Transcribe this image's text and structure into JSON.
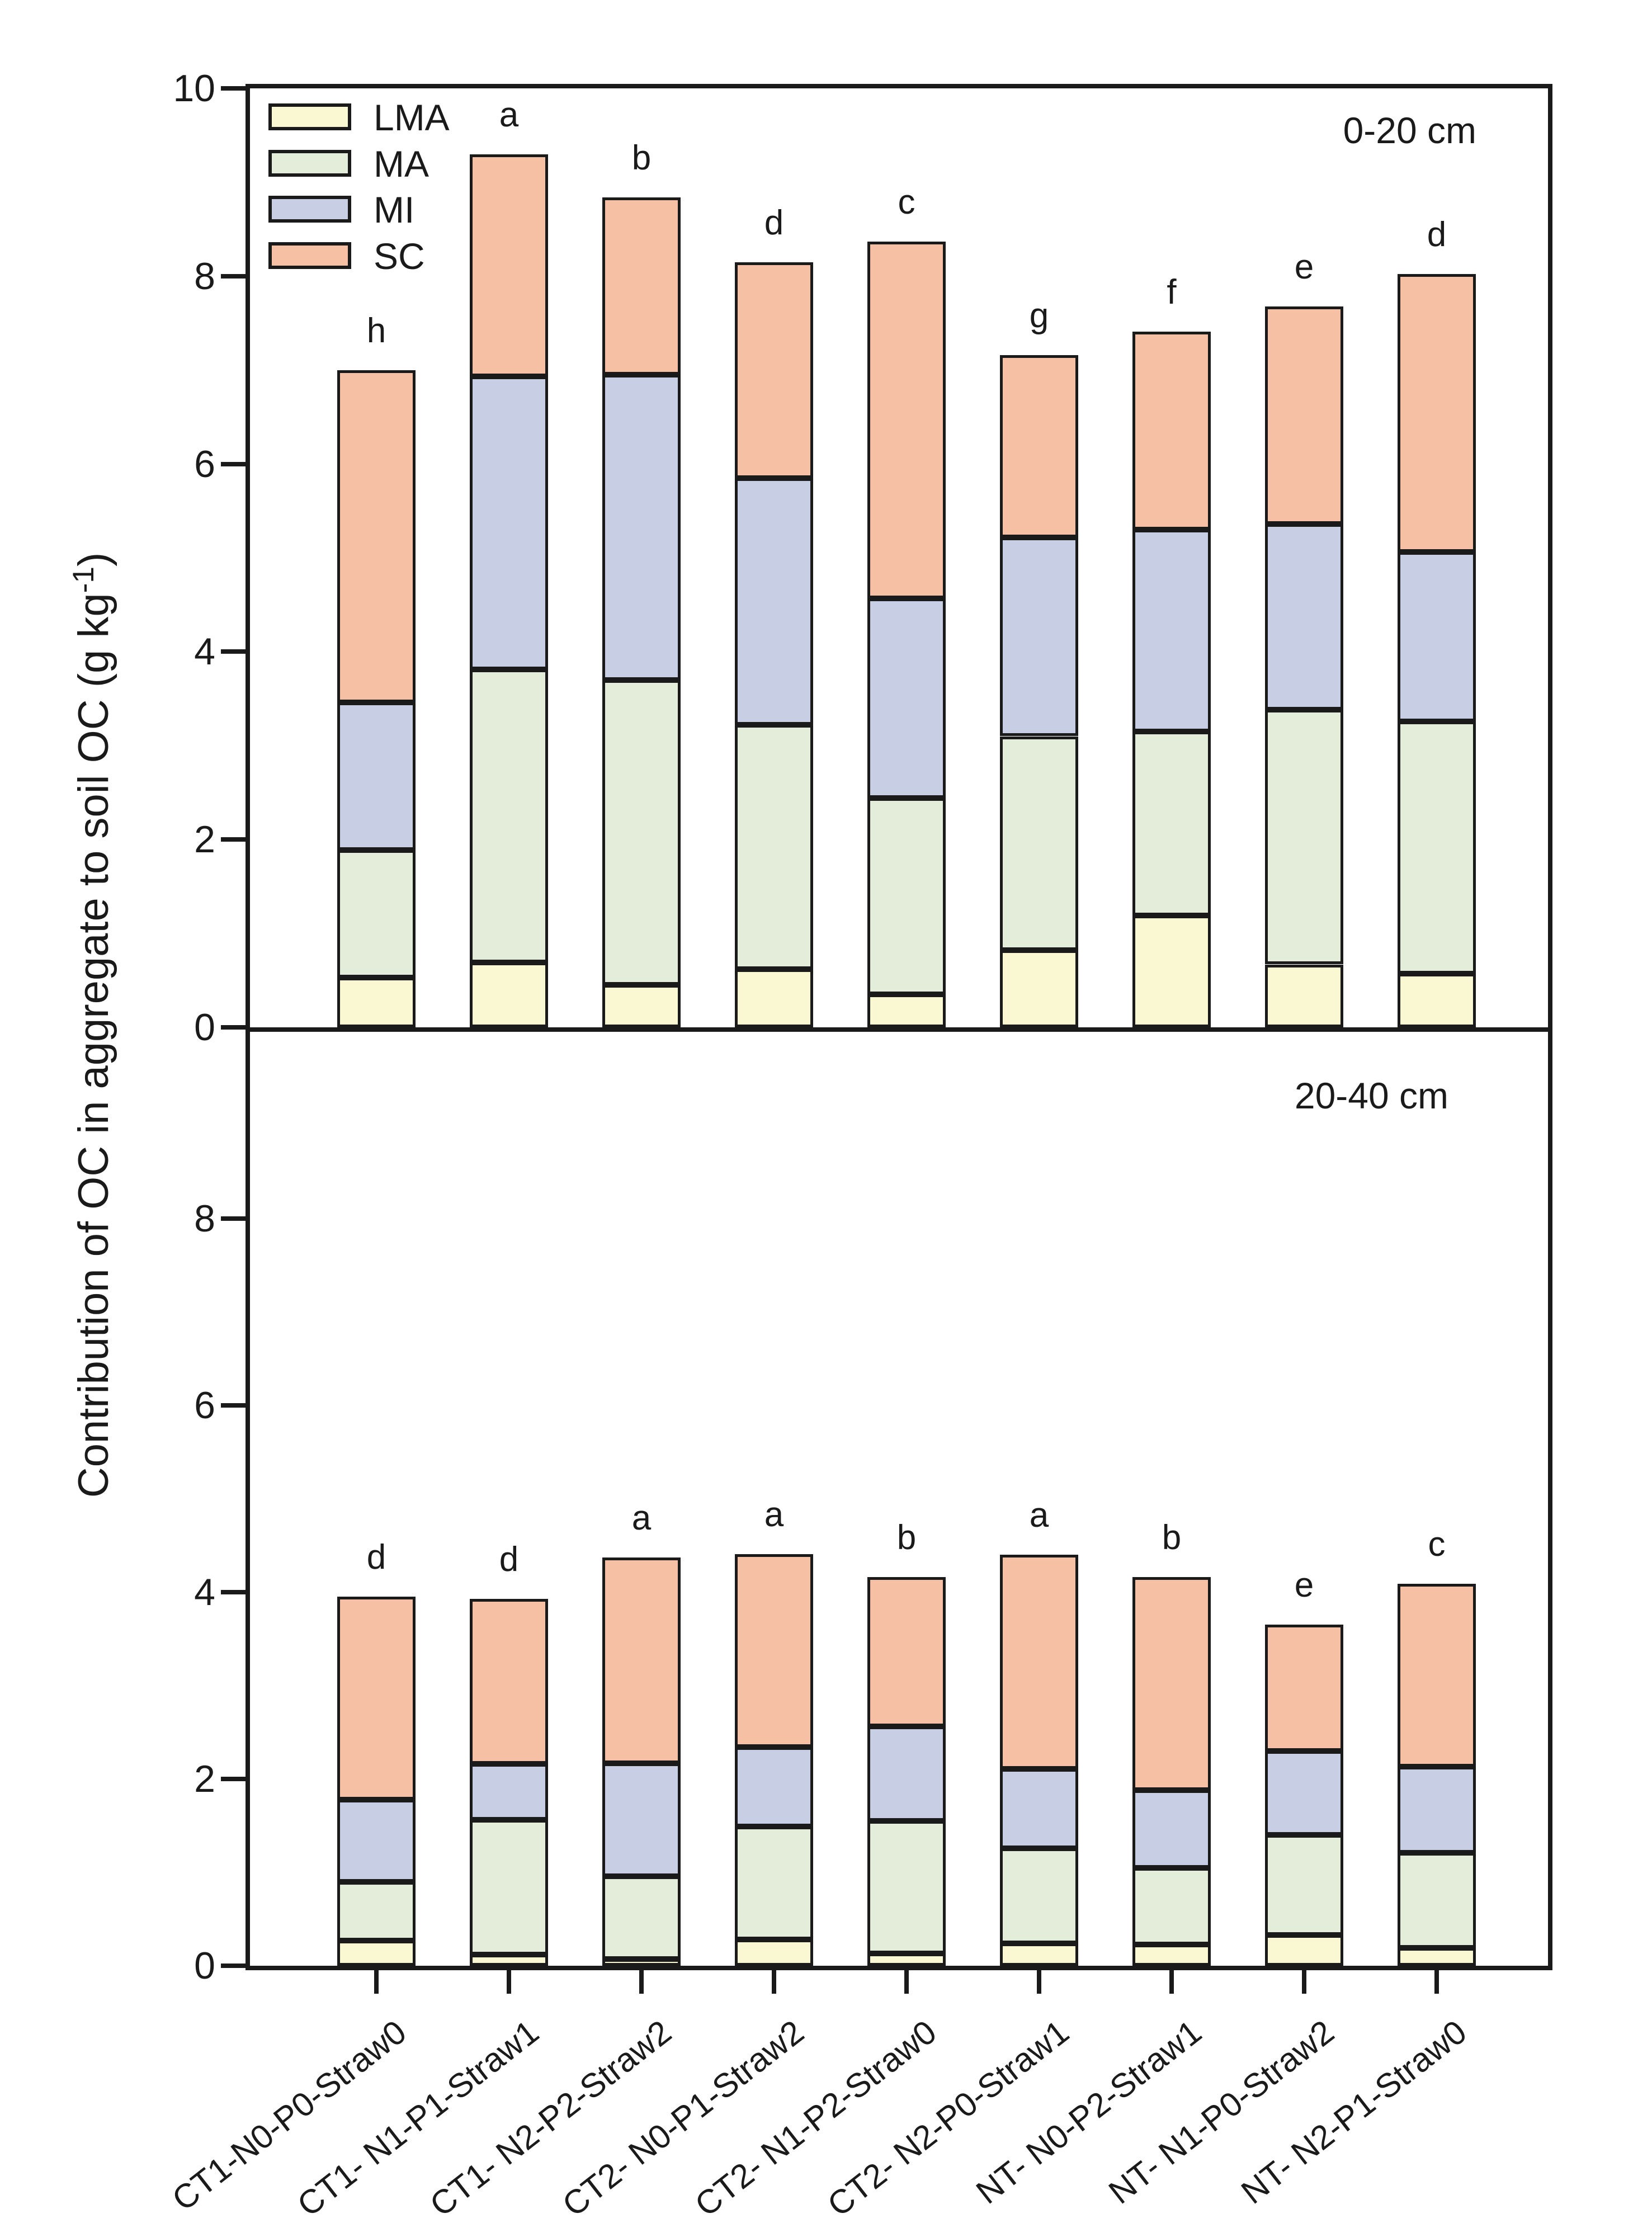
{
  "figure": {
    "ylabel": {
      "main": "Contribution of OC in aggregate to soil OC (g kg",
      "sup": "-1",
      "end": ")"
    },
    "legend": [
      {
        "label": "LMA",
        "color": "#FAF8D2"
      },
      {
        "label": "MA",
        "color": "#E3EDDA"
      },
      {
        "label": "MI",
        "color": "#C8CEE4"
      },
      {
        "label": "SC",
        "color": "#F5C0A3"
      }
    ],
    "outline_color": "#1a1a1a"
  },
  "chart_data": [
    {
      "type": "bar",
      "stacked": true,
      "panel_label": "0-20 cm",
      "ylim": [
        0,
        10
      ],
      "yticks": [
        10,
        8,
        6,
        4,
        2,
        0
      ],
      "grid": false,
      "legend_position": "upper-left",
      "categories": [
        "CT1-N0-P0-Straw0",
        "CT1- N1-P1-Straw1",
        "CT1- N2-P2-Straw2",
        "CT2- N0-P1-Straw2",
        "CT2- N1-P2-Straw0",
        "CT2- N2-P0-Straw1",
        "NT- N0-P2-Straw1",
        "NT- N1-P0-Straw2",
        "NT- N2-P1-Straw0"
      ],
      "series": [
        {
          "name": "LMA",
          "values": [
            0.53,
            0.69,
            0.45,
            0.62,
            0.35,
            0.82,
            1.19,
            0.67,
            0.57
          ]
        },
        {
          "name": "MA",
          "values": [
            1.36,
            3.12,
            3.25,
            2.6,
            2.09,
            2.28,
            1.96,
            2.71,
            2.69
          ]
        },
        {
          "name": "MI",
          "values": [
            1.57,
            3.12,
            3.25,
            2.63,
            2.13,
            2.12,
            2.15,
            1.98,
            1.8
          ]
        },
        {
          "name": "SC",
          "values": [
            3.54,
            2.37,
            1.89,
            2.3,
            3.8,
            1.94,
            2.11,
            2.32,
            2.96
          ]
        }
      ],
      "totals": [
        7.0,
        9.3,
        8.84,
        8.15,
        8.37,
        7.16,
        7.41,
        7.68,
        8.02
      ],
      "letters": [
        "h",
        "a",
        "b",
        "d",
        "c",
        "g",
        "f",
        "e",
        "d"
      ]
    },
    {
      "type": "bar",
      "stacked": true,
      "panel_label": "20-40 cm",
      "ylim": [
        0,
        10
      ],
      "yticks": [
        8,
        6,
        4,
        2,
        0
      ],
      "grid": false,
      "categories": [
        "CT1-N0-P0-Straw0",
        "CT1- N1-P1-Straw1",
        "CT1- N2-P2-Straw2",
        "CT2- N0-P1-Straw2",
        "CT2- N1-P2-Straw0",
        "CT2- N2-P0-Straw1",
        "NT- N0-P2-Straw1",
        "NT- N1-P0-Straw2",
        "NT- N2-P1-Straw0"
      ],
      "series": [
        {
          "name": "LMA",
          "values": [
            0.27,
            0.12,
            0.07,
            0.28,
            0.13,
            0.24,
            0.23,
            0.33,
            0.19
          ]
        },
        {
          "name": "MA",
          "values": [
            0.63,
            1.44,
            0.89,
            1.21,
            1.42,
            1.02,
            0.82,
            1.07,
            1.02
          ]
        },
        {
          "name": "MI",
          "values": [
            0.88,
            0.6,
            1.21,
            0.85,
            1.01,
            0.85,
            0.83,
            0.9,
            0.92
          ]
        },
        {
          "name": "SC",
          "values": [
            2.17,
            1.77,
            2.2,
            2.07,
            1.6,
            2.29,
            2.28,
            1.35,
            1.96
          ]
        }
      ],
      "totals": [
        3.95,
        3.93,
        4.37,
        4.41,
        4.16,
        4.4,
        4.16,
        3.65,
        4.09
      ],
      "letters": [
        "d",
        "d",
        "a",
        "a",
        "b",
        "a",
        "b",
        "e",
        "c"
      ]
    }
  ]
}
